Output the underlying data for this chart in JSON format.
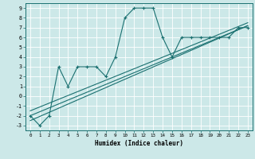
{
  "xlabel": "Humidex (Indice chaleur)",
  "xlim": [
    -0.5,
    23.5
  ],
  "ylim": [
    -3.5,
    9.5
  ],
  "yticks": [
    -3,
    -2,
    -1,
    0,
    1,
    2,
    3,
    4,
    5,
    6,
    7,
    8,
    9
  ],
  "xticks": [
    0,
    1,
    2,
    3,
    4,
    5,
    6,
    7,
    8,
    9,
    10,
    11,
    12,
    13,
    14,
    15,
    16,
    17,
    18,
    19,
    20,
    21,
    22,
    23
  ],
  "bg_color": "#cce8e8",
  "grid_color": "#b0d0d0",
  "line_color": "#1a7070",
  "main_curve_x": [
    0,
    1,
    2,
    3,
    4,
    5,
    6,
    7,
    8,
    9,
    10,
    11,
    12,
    13,
    14,
    15,
    16,
    17,
    18,
    19,
    20,
    21,
    22,
    23
  ],
  "main_curve_y": [
    -2,
    -3,
    -2,
    3,
    1,
    3,
    3,
    3,
    2,
    4,
    8,
    9,
    9,
    9,
    6,
    4,
    6,
    6,
    6,
    6,
    6,
    6,
    7,
    7
  ],
  "trend1_x": [
    0,
    23
  ],
  "trend1_y": [
    -2.5,
    7.2
  ],
  "trend2_x": [
    0,
    23
  ],
  "trend2_y": [
    -2.0,
    7.2
  ],
  "trend3_x": [
    0,
    23
  ],
  "trend3_y": [
    -1.5,
    7.5
  ]
}
